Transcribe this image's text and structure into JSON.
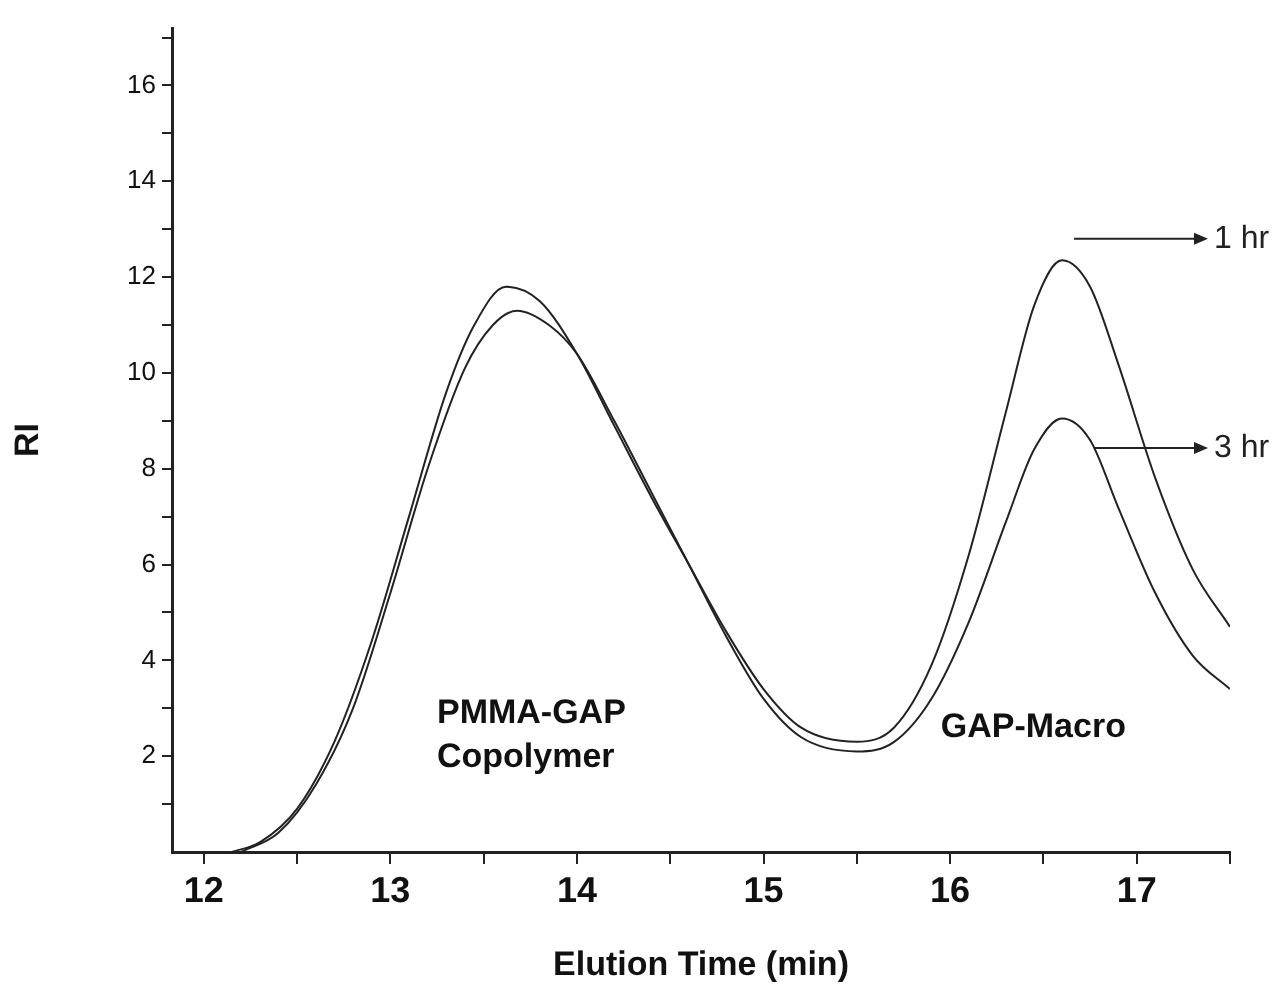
{
  "chart_data": {
    "type": "line",
    "xlabel": "Elution Time (min)",
    "ylabel": "RI",
    "xlim": [
      11.83,
      17.5
    ],
    "ylim": [
      0,
      17.2
    ],
    "xticks": [
      12,
      {
        "value": 12.5,
        "label": null
      },
      13,
      {
        "value": 13.5,
        "label": null
      },
      14,
      {
        "value": 14.5,
        "label": null
      },
      15,
      {
        "value": 15.5,
        "label": null
      },
      16,
      {
        "value": 16.5,
        "label": null
      },
      17,
      {
        "value": 17.5,
        "label": null
      }
    ],
    "yticks": [
      {
        "value": 1,
        "label": null
      },
      2,
      {
        "value": 3,
        "label": null
      },
      4,
      {
        "value": 5,
        "label": null
      },
      6,
      {
        "value": 7,
        "label": null
      },
      8,
      {
        "value": 9,
        "label": null
      },
      10,
      {
        "value": 11,
        "label": null
      },
      12,
      {
        "value": 13,
        "label": null
      },
      14,
      {
        "value": 15,
        "label": null
      },
      16,
      {
        "value": 17,
        "label": null
      }
    ],
    "grid": false,
    "legend": "right",
    "marker": "none",
    "line_style": "solid",
    "series": [
      {
        "name": "1 hr",
        "color": "#222222",
        "x": [
          12.15,
          12.3,
          12.5,
          12.7,
          12.9,
          13.1,
          13.3,
          13.45,
          13.62,
          13.8,
          14.0,
          14.2,
          14.4,
          14.6,
          14.8,
          15.0,
          15.2,
          15.5,
          15.7,
          15.9,
          16.1,
          16.3,
          16.45,
          16.6,
          16.75,
          16.9,
          17.1,
          17.3,
          17.5
        ],
        "values": [
          0,
          0.2,
          0.9,
          2.3,
          4.4,
          7.0,
          9.6,
          11.0,
          11.8,
          11.5,
          10.4,
          8.9,
          7.4,
          6.0,
          4.6,
          3.4,
          2.6,
          2.3,
          2.6,
          3.9,
          6.2,
          9.2,
          11.4,
          12.35,
          11.8,
          10.2,
          7.8,
          5.9,
          4.7
        ]
      },
      {
        "name": "3 hr",
        "color": "#222222",
        "x": [
          12.2,
          12.4,
          12.6,
          12.8,
          13.0,
          13.2,
          13.4,
          13.55,
          13.68,
          13.85,
          14.0,
          14.2,
          14.4,
          14.6,
          14.8,
          15.0,
          15.2,
          15.5,
          15.7,
          15.9,
          16.1,
          16.3,
          16.45,
          16.6,
          16.75,
          16.9,
          17.1,
          17.3,
          17.5
        ],
        "values": [
          0,
          0.4,
          1.4,
          3.0,
          5.4,
          8.0,
          10.1,
          11.0,
          11.3,
          11.0,
          10.4,
          9.0,
          7.5,
          6.0,
          4.5,
          3.2,
          2.4,
          2.1,
          2.3,
          3.2,
          4.8,
          6.9,
          8.4,
          9.05,
          8.6,
          7.2,
          5.4,
          4.1,
          3.4
        ]
      }
    ],
    "annotations": [
      "PMMA-GAP\nCopolymer",
      "GAP-Macro"
    ]
  }
}
